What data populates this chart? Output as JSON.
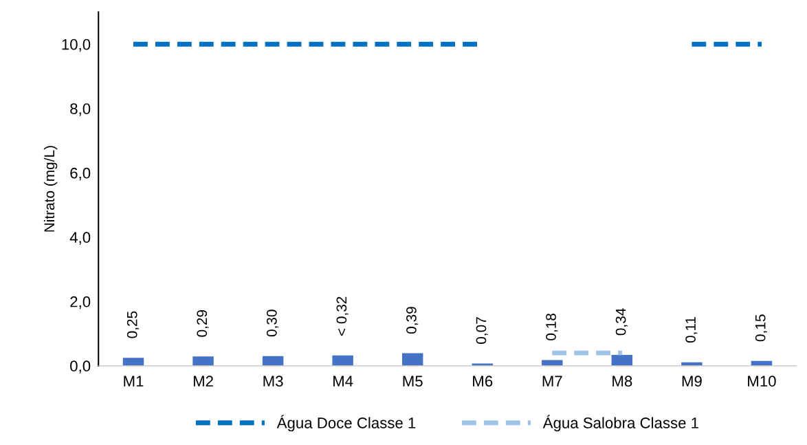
{
  "chart_data": {
    "type": "bar",
    "ylabel": "Nitrato (mg/L)",
    "categories": [
      "M1",
      "M2",
      "M3",
      "M4",
      "M5",
      "M6",
      "M7",
      "M8",
      "M9",
      "M10"
    ],
    "ylim": [
      0,
      11
    ],
    "yticks": [
      {
        "value": 0,
        "label": "0,0"
      },
      {
        "value": 2,
        "label": "2,0"
      },
      {
        "value": 4,
        "label": "4,0"
      },
      {
        "value": 6,
        "label": "6,0"
      },
      {
        "value": 8,
        "label": "8,0"
      },
      {
        "value": 10,
        "label": "10,0"
      }
    ],
    "grid": false,
    "legend": "bottom",
    "line_style": "dashed",
    "series": [
      {
        "color": "#4472c4",
        "values": [
          0.25,
          0.29,
          0.3,
          0.32,
          0.39,
          0.07,
          0.18,
          0.34,
          0.11,
          0.15
        ],
        "value_labels": [
          "0,25",
          "0,29",
          "0,30",
          "< 0,32",
          "0,39",
          "0,07",
          "0,18",
          "0,34",
          "0,11",
          "0,15"
        ]
      },
      {
        "type": "line",
        "name": "Água Doce Classe 1",
        "color": "#0070c0",
        "values": [
          10,
          10,
          10,
          10,
          10,
          10,
          null,
          null,
          10,
          10
        ]
      },
      {
        "type": "line",
        "name": "Água Salobra Classe 1",
        "color": "#9dc3e6",
        "values": [
          null,
          null,
          null,
          null,
          null,
          null,
          0.4,
          0.4,
          null,
          null
        ]
      }
    ]
  }
}
